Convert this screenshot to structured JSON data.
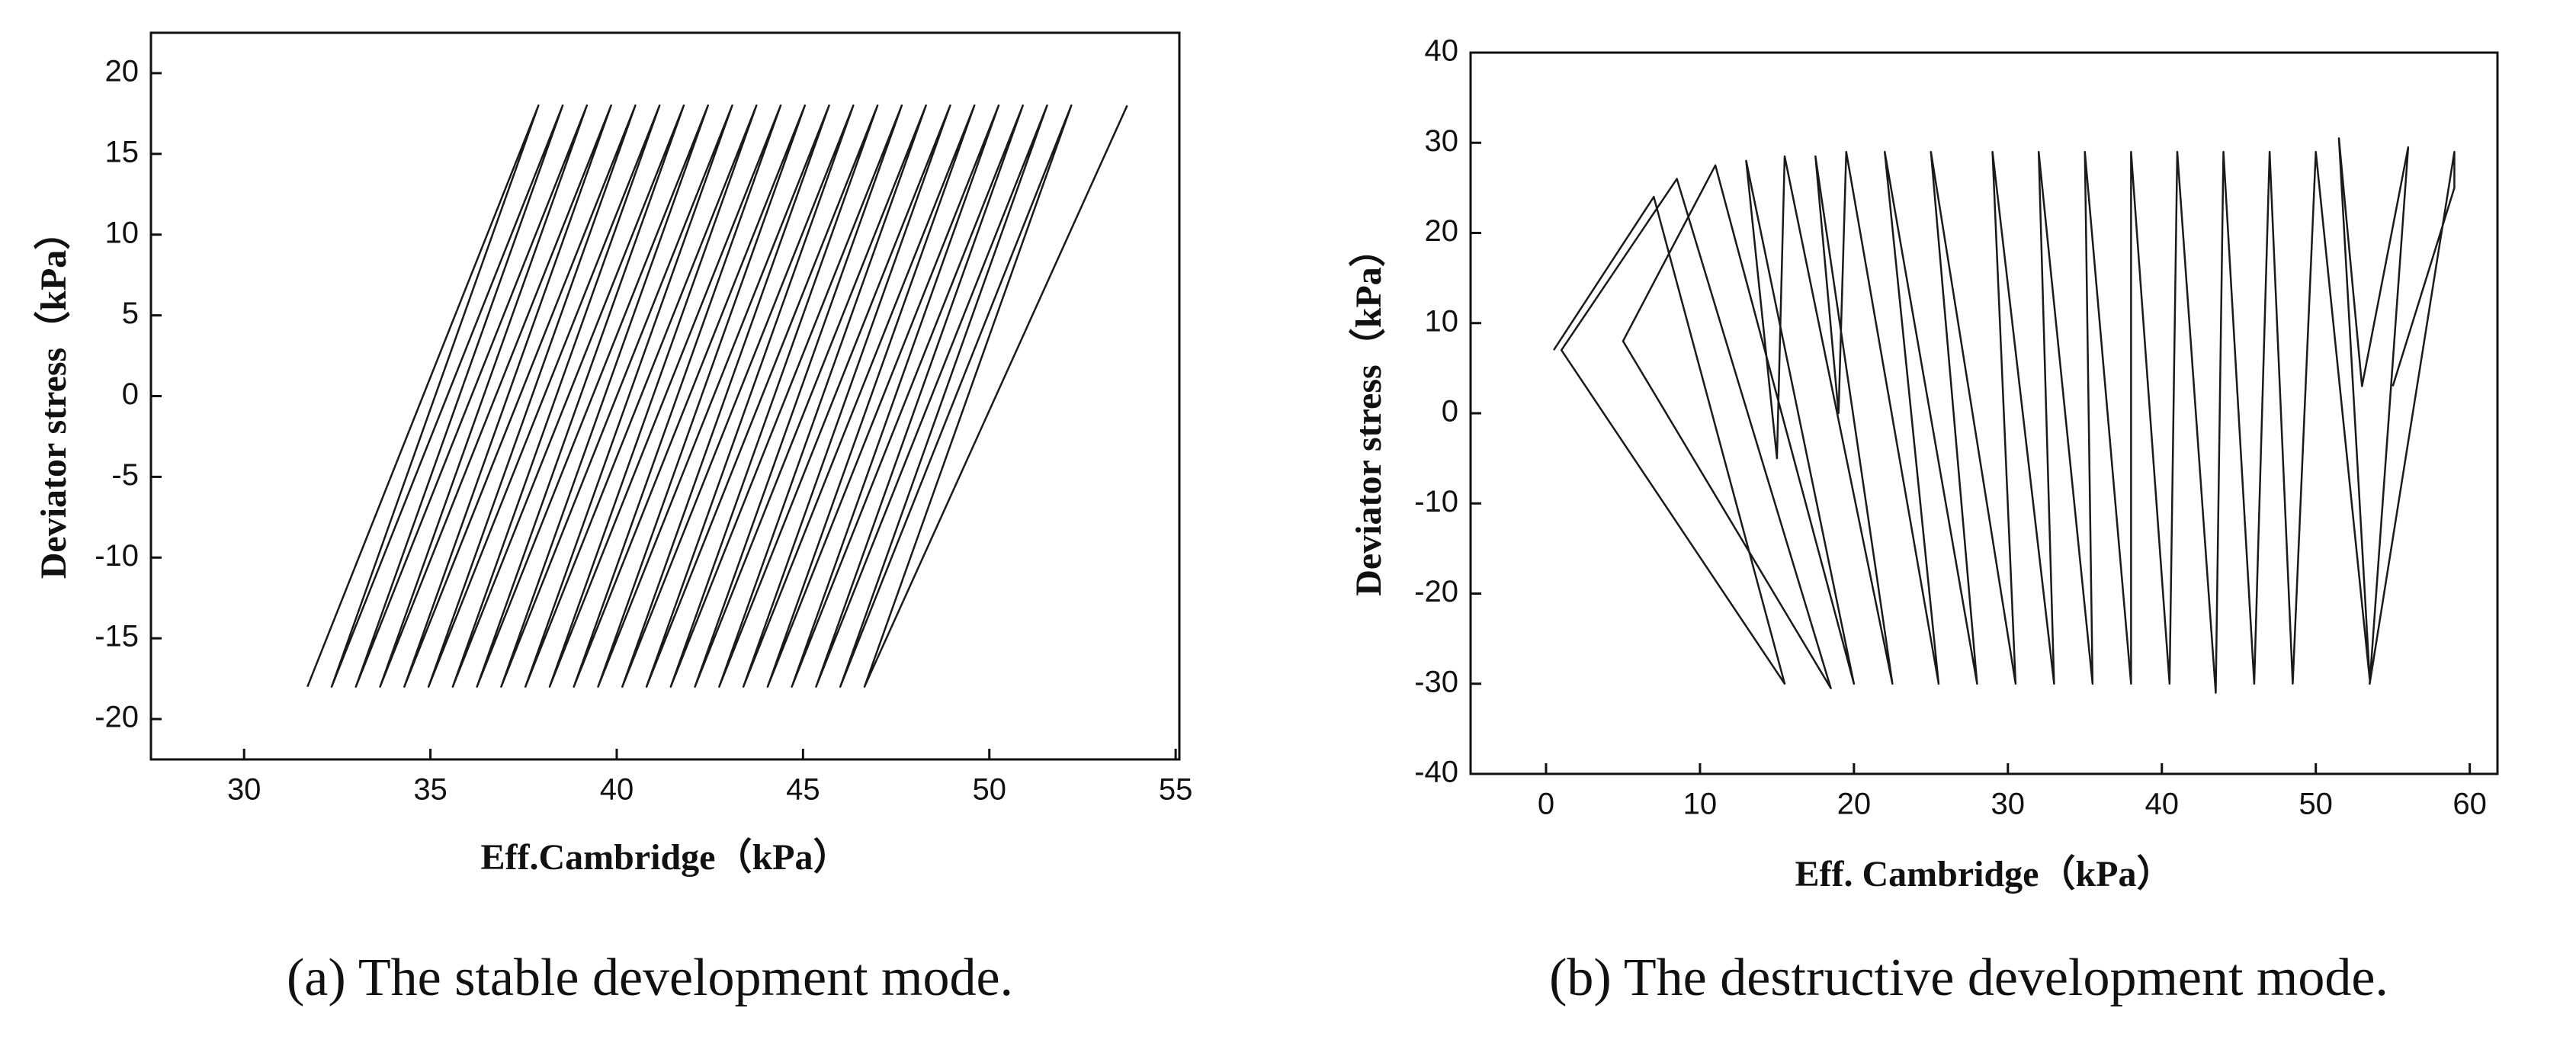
{
  "chart_data": [
    {
      "type": "line",
      "x_label": "Eff.Cambridge（kPa）",
      "y_label": "Deviator stress（kPa）",
      "caption": "(a) The stable development mode.",
      "xlim": [
        27.5,
        55.1
      ],
      "ylim": [
        -22.5,
        22.5
      ],
      "xticks": [
        30,
        35,
        40,
        45,
        50,
        55
      ],
      "yticks": [
        -20,
        -15,
        -10,
        -5,
        0,
        5,
        10,
        15,
        20
      ],
      "x": [
        31.7,
        37.9,
        32.35,
        38.55,
        33.0,
        39.2,
        33.65,
        39.85,
        34.3,
        40.5,
        34.95,
        41.15,
        35.6,
        41.8,
        36.25,
        42.45,
        36.9,
        43.1,
        37.55,
        43.75,
        38.2,
        44.4,
        38.85,
        45.05,
        39.5,
        45.7,
        40.15,
        46.35,
        40.8,
        47.0,
        41.45,
        47.65,
        42.1,
        48.3,
        42.75,
        48.95,
        43.4,
        49.6,
        44.05,
        50.25,
        44.7,
        50.9,
        45.35,
        51.55,
        46.0,
        52.2,
        46.65,
        53.7
      ],
      "series": [
        {
          "color": "#1a1a1a",
          "values": [
            -18,
            18,
            -18,
            18,
            -18,
            18,
            -18,
            18,
            -18,
            18,
            -18,
            18,
            -18,
            18,
            -18,
            18,
            -18,
            18,
            -18,
            18,
            -18,
            18,
            -18,
            18,
            -18,
            18,
            -18,
            18,
            -18,
            18,
            -18,
            18,
            -18,
            18,
            -18,
            18,
            -18,
            18,
            -18,
            18,
            -18,
            18,
            -18,
            18,
            -18,
            18,
            -18,
            18
          ]
        }
      ]
    },
    {
      "type": "line",
      "x_label": "Eff. Cambridge（kPa）",
      "y_label": "Deviator stress（kPa）",
      "caption": "(b) The destructive development mode.",
      "xlim": [
        -4.9,
        61.8
      ],
      "ylim": [
        -40,
        40
      ],
      "xticks": [
        0,
        10,
        20,
        30,
        40,
        50,
        60
      ],
      "yticks": [
        -40,
        -30,
        -20,
        -10,
        0,
        10,
        20,
        30,
        40
      ],
      "x": [
        0.5,
        7,
        15.5,
        1,
        8.5,
        18.5,
        5,
        11,
        20,
        13,
        15,
        15.5,
        22.5,
        17.5,
        19,
        19.5,
        25.5,
        22,
        28,
        25,
        30.5,
        29,
        33,
        32,
        35.5,
        35,
        38,
        38,
        40.5,
        41,
        43.5,
        44,
        46,
        47,
        48.5,
        50,
        53.5,
        51.5,
        53,
        56,
        53.5,
        59,
        59,
        55
      ],
      "series": [
        {
          "color": "#1a1a1a",
          "values": [
            7,
            24,
            -30,
            7,
            26,
            -30.5,
            8,
            27.5,
            -30,
            28,
            -5,
            28.5,
            -30,
            28.5,
            0,
            29,
            -30,
            29,
            -30,
            29,
            -30,
            29,
            -30,
            29,
            -30,
            29,
            -30,
            29,
            -30,
            29,
            -31,
            29,
            -30,
            29,
            -30,
            29,
            -29.5,
            30.5,
            3,
            29.5,
            -30,
            29,
            25,
            3
          ]
        }
      ]
    }
  ]
}
